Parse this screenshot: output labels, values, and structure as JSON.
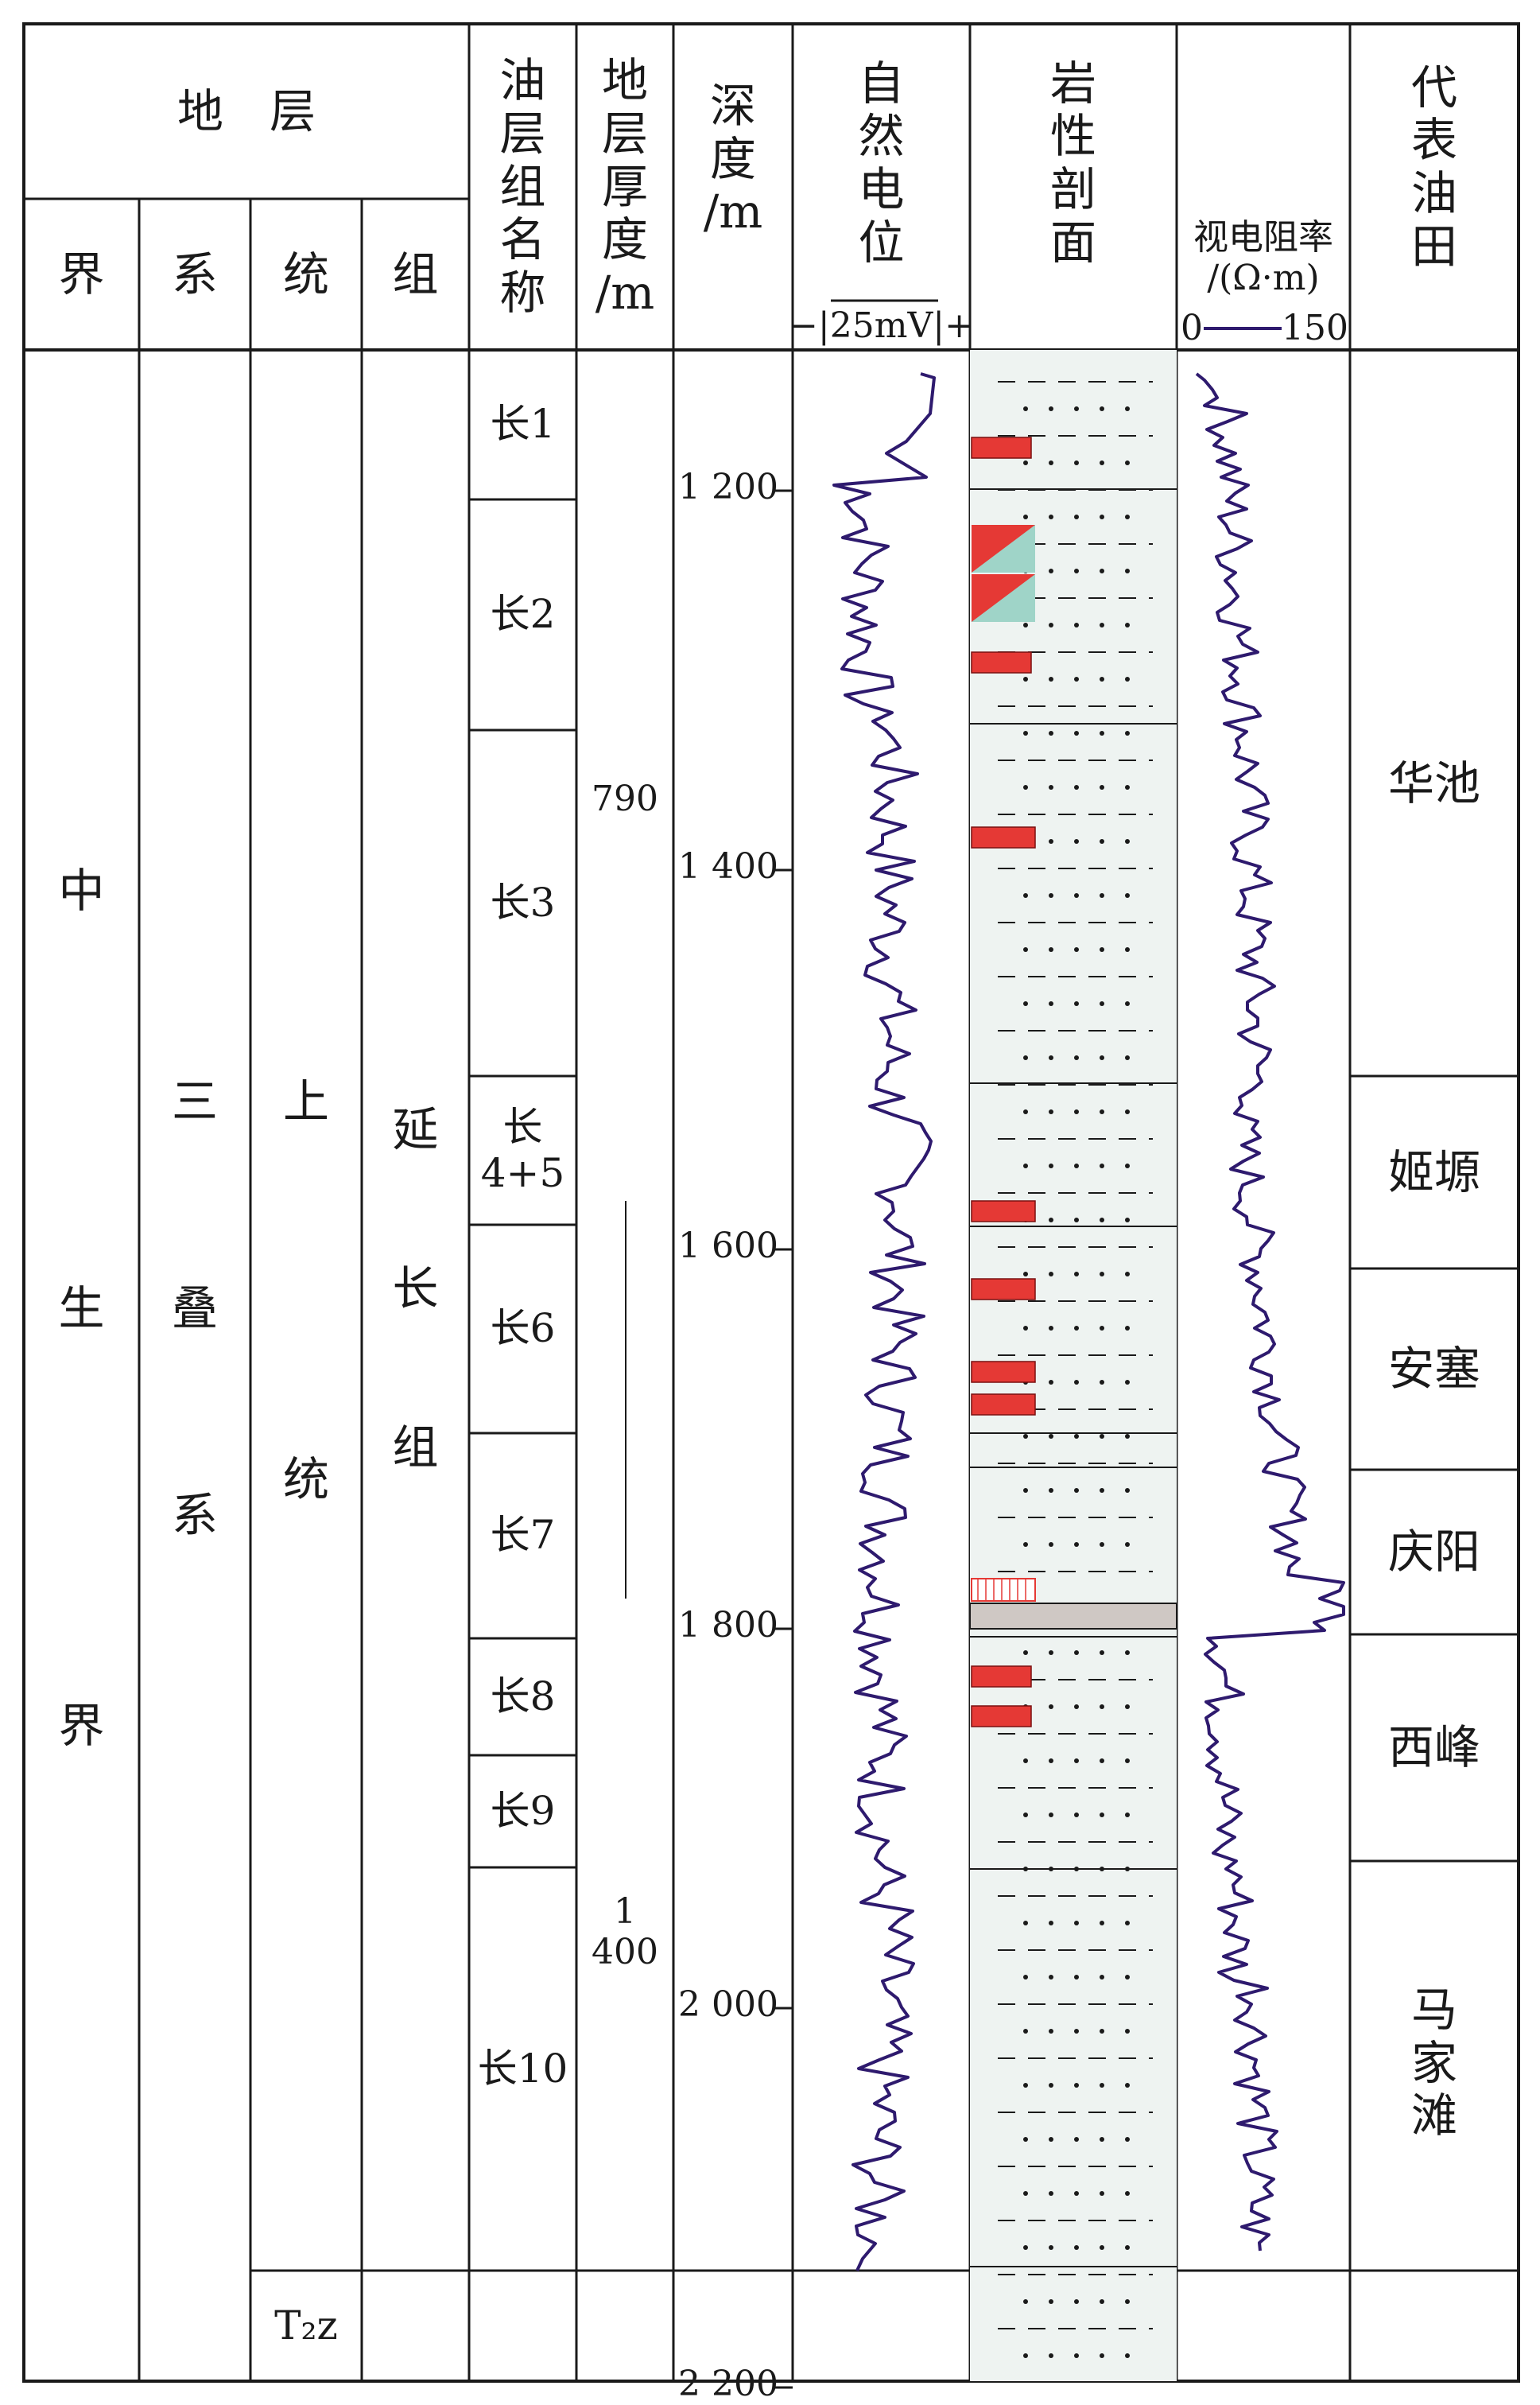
{
  "headers": {
    "stratum": "地　层",
    "erathem": "界",
    "system": "系",
    "series": "统",
    "formation": "组",
    "oil_group_name": "油层组名称",
    "thickness": "地层厚度/m",
    "depth": "深度/m",
    "sp": "自然电位",
    "sp_scale": "−|25mV|+",
    "lithology": "岩性剖面",
    "resistivity": "视电阻率/(Ω·m)",
    "res_scale_min": "0",
    "res_scale_max": "150",
    "oilfield": "代表油田"
  },
  "strata": {
    "erathem": [
      "中",
      "生",
      "界"
    ],
    "system": [
      "三",
      "叠",
      "系"
    ],
    "series": [
      "上",
      "统"
    ],
    "formation": [
      "延",
      "长",
      "组"
    ],
    "bottom_unit": "T₂z"
  },
  "oil_groups": [
    "长1",
    "长2",
    "长3",
    "长4+5",
    "长6",
    "长7",
    "长8",
    "长9",
    "长10"
  ],
  "thickness_values": [
    "790",
    "1 400"
  ],
  "depth_ticks": [
    "1 200",
    "1 400",
    "1 600",
    "1 800",
    "2 000",
    "2 200"
  ],
  "oilfields": [
    "华池",
    "姬塬",
    "安塞",
    "庆阳",
    "西峰",
    "马家滩"
  ],
  "colors": {
    "line": "#1a1a1a",
    "log_curve": "#2e1a6e",
    "oil_sand": "#e53935",
    "litho_bg": "#eef3f1",
    "teal": "#9fd4c8",
    "shale_band": "#cfc8c4"
  }
}
